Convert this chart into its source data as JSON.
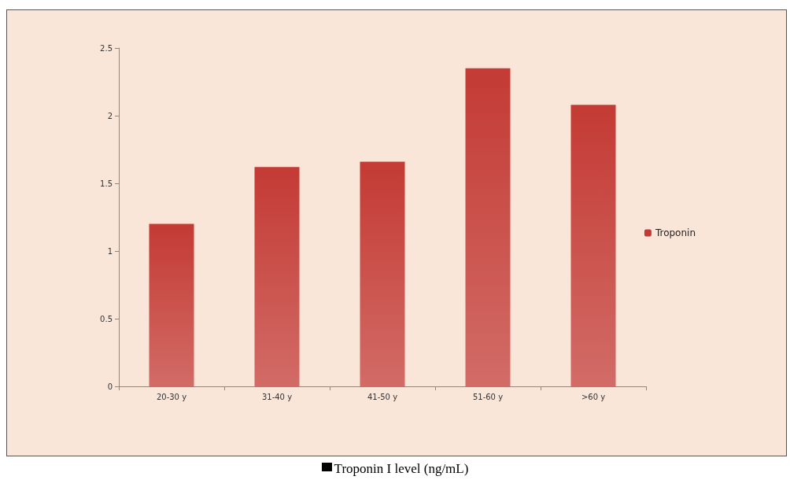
{
  "chart_data": {
    "type": "bar",
    "categories": [
      "20-30 y",
      "31-40 y",
      "41-50 y",
      "51-60 y",
      ">60 y"
    ],
    "series": [
      {
        "name": "Troponin",
        "color": "#c43a34",
        "values": [
          1.2,
          1.62,
          1.66,
          2.35,
          2.08
        ]
      }
    ],
    "ylim": [
      0,
      2.5
    ],
    "yticks": [
      0,
      0.5,
      1,
      1.5,
      2,
      2.5
    ],
    "grid": false,
    "legend": "right",
    "annotations": [
      "Troponin I level (ng/mL)"
    ]
  }
}
